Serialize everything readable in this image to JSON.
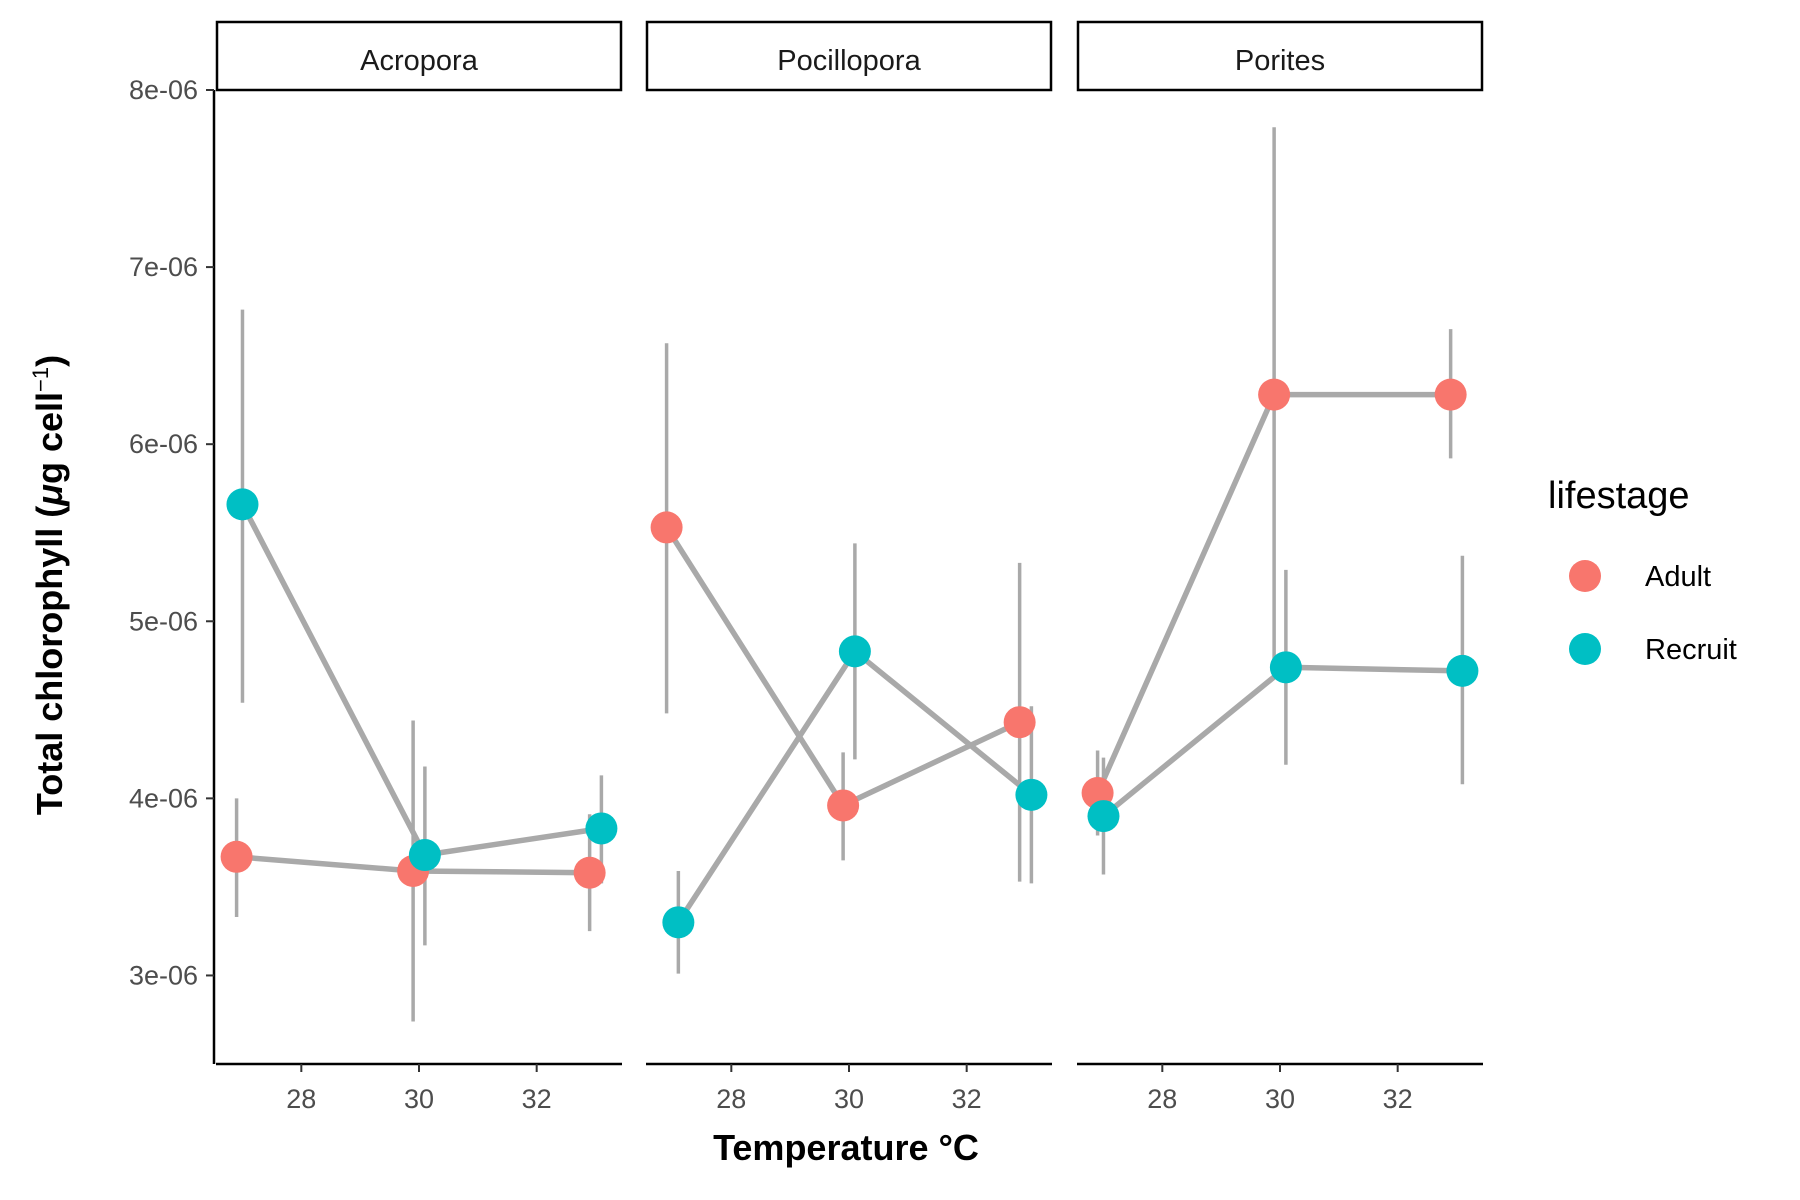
{
  "chart_data": {
    "type": "scatter",
    "facet_labels": [
      "Acropora",
      "Pocillopora",
      "Porites"
    ],
    "xlabel": "Temperature °C",
    "ylabel_main": "Total chlorophyll (",
    "ylabel_mu": "μ",
    "ylabel_units": "g cell",
    "ylabel_sup": "−1",
    "ylabel_close": ")",
    "x_ticks": [
      28,
      30,
      32
    ],
    "x_tick_labels": [
      "28",
      "30",
      "32"
    ],
    "xlim": [
      26.55,
      33.45
    ],
    "y_ticks": [
      3e-06,
      4e-06,
      5e-06,
      6e-06,
      7e-06,
      8e-06
    ],
    "y_tick_labels": [
      "3e-06",
      "4e-06",
      "5e-06",
      "6e-06",
      "7e-06",
      "8e-06"
    ],
    "ylim": [
      2.5e-06,
      8e-06
    ],
    "legend": {
      "title": "lifestage",
      "position": "right",
      "entries": [
        "Adult",
        "Recruit"
      ]
    },
    "colors": {
      "Adult": "#F8766D",
      "Recruit": "#00BFC4",
      "lines": "#A9A9A9"
    },
    "facets": [
      {
        "name": "Acropora",
        "series": [
          {
            "name": "Adult",
            "points": [
              {
                "x": 26.9,
                "y": 3.67e-06,
                "ymin": 3.33e-06,
                "ymax": 4e-06
              },
              {
                "x": 29.9,
                "y": 3.59e-06,
                "ymin": 2.74e-06,
                "ymax": 4.44e-06
              },
              {
                "x": 32.9,
                "y": 3.58e-06,
                "ymin": 3.25e-06,
                "ymax": 3.91e-06
              }
            ]
          },
          {
            "name": "Recruit",
            "points": [
              {
                "x": 27.0,
                "y": 5.66e-06,
                "ymin": 4.54e-06,
                "ymax": 6.76e-06
              },
              {
                "x": 30.1,
                "y": 3.68e-06,
                "ymin": 3.17e-06,
                "ymax": 4.18e-06
              },
              {
                "x": 33.1,
                "y": 3.83e-06,
                "ymin": 3.52e-06,
                "ymax": 4.13e-06
              }
            ]
          }
        ]
      },
      {
        "name": "Pocillopora",
        "series": [
          {
            "name": "Adult",
            "points": [
              {
                "x": 26.9,
                "y": 5.53e-06,
                "ymin": 4.48e-06,
                "ymax": 6.57e-06
              },
              {
                "x": 29.9,
                "y": 3.96e-06,
                "ymin": 3.65e-06,
                "ymax": 4.26e-06
              },
              {
                "x": 32.9,
                "y": 4.43e-06,
                "ymin": 3.53e-06,
                "ymax": 5.33e-06
              }
            ]
          },
          {
            "name": "Recruit",
            "points": [
              {
                "x": 27.1,
                "y": 3.3e-06,
                "ymin": 3.01e-06,
                "ymax": 3.59e-06
              },
              {
                "x": 30.1,
                "y": 4.83e-06,
                "ymin": 4.22e-06,
                "ymax": 5.44e-06
              },
              {
                "x": 33.1,
                "y": 4.02e-06,
                "ymin": 3.52e-06,
                "ymax": 4.52e-06
              }
            ]
          }
        ]
      },
      {
        "name": "Porites",
        "series": [
          {
            "name": "Adult",
            "points": [
              {
                "x": 26.9,
                "y": 4.03e-06,
                "ymin": 3.79e-06,
                "ymax": 4.27e-06
              },
              {
                "x": 29.9,
                "y": 6.28e-06,
                "ymin": 4.77e-06,
                "ymax": 7.79e-06
              },
              {
                "x": 32.9,
                "y": 6.28e-06,
                "ymin": 5.92e-06,
                "ymax": 6.65e-06
              }
            ]
          },
          {
            "name": "Recruit",
            "points": [
              {
                "x": 27.0,
                "y": 3.9e-06,
                "ymin": 3.57e-06,
                "ymax": 4.23e-06
              },
              {
                "x": 30.1,
                "y": 4.74e-06,
                "ymin": 4.19e-06,
                "ymax": 5.29e-06
              },
              {
                "x": 33.1,
                "y": 4.72e-06,
                "ymin": 4.08e-06,
                "ymax": 5.37e-06
              }
            ]
          }
        ]
      }
    ]
  }
}
